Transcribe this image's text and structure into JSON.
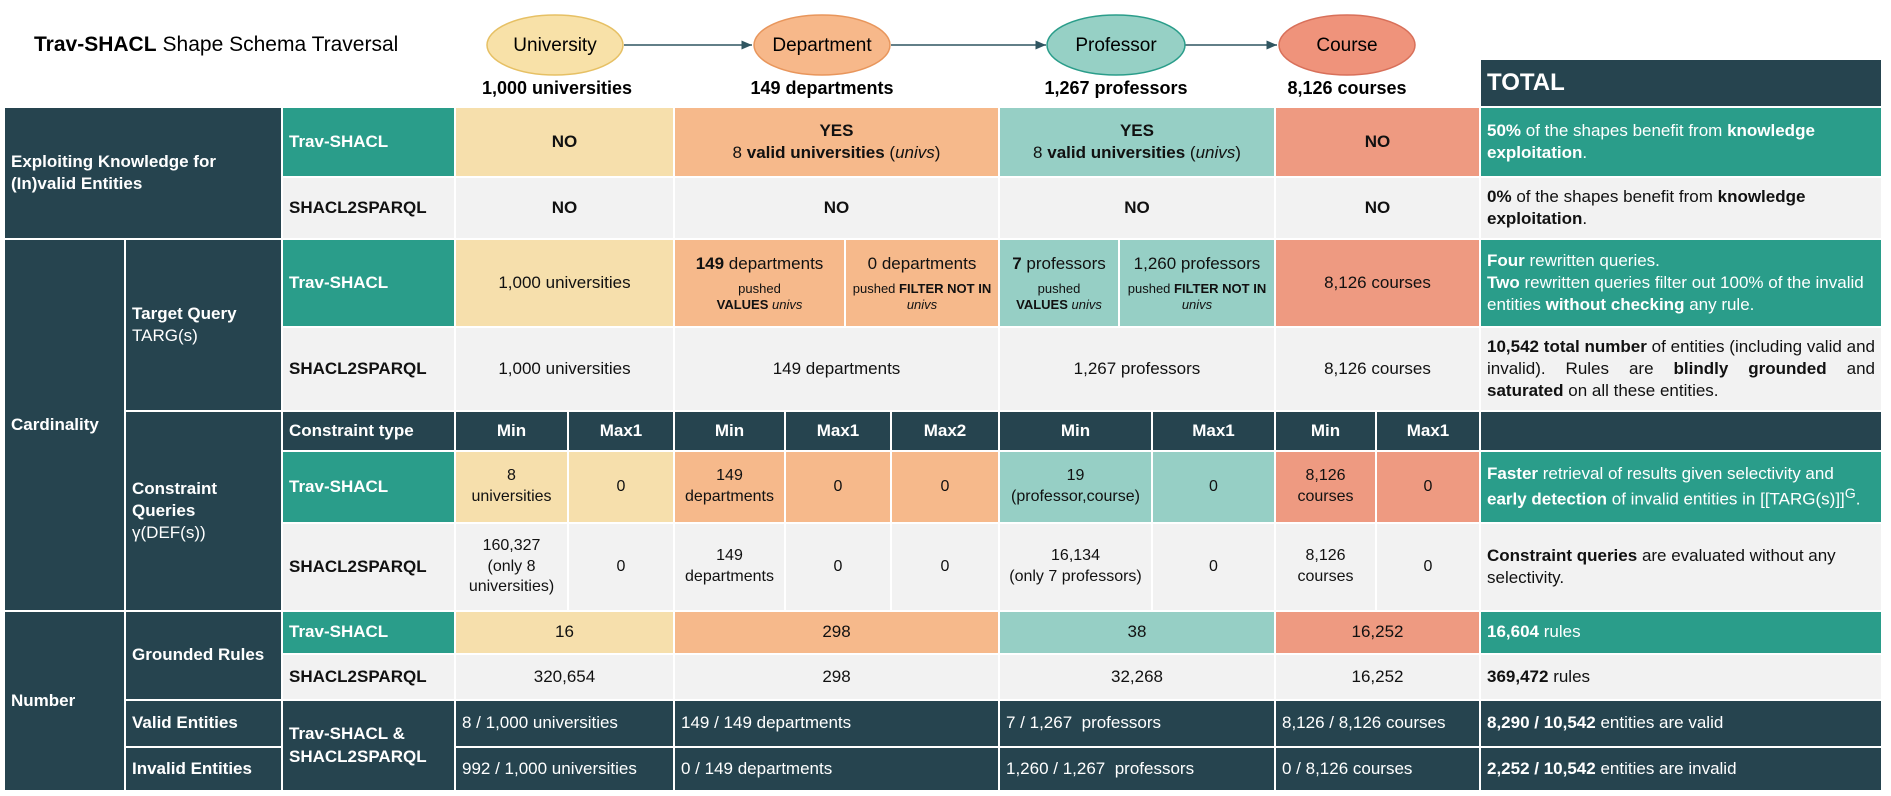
{
  "header": {
    "title": [
      "Trav-SHACL",
      "Shape Schema Traversal"
    ]
  },
  "nodes": [
    {
      "label": "University",
      "count": "1,000 universities"
    },
    {
      "label": "Department",
      "count": "149 departments"
    },
    {
      "label": "Professor",
      "count": "1,267 professors"
    },
    {
      "label": "Course",
      "count": "8,126 courses"
    }
  ],
  "table": {
    "total_header": "TOTAL",
    "exploiting": {
      "label": "Exploiting Knowledge for (In)valid Entities",
      "rows": [
        {
          "method": "Trav-SHACL",
          "cells": [
            "NO",
            [
              "YES",
              "8",
              "valid universities",
              "(",
              "univs",
              ")"
            ],
            [
              "YES",
              "8",
              "valid universities",
              "(",
              "univs",
              ")"
            ],
            "NO"
          ],
          "total": [
            "50%",
            "of the shapes benefit from",
            "knowledge exploitation",
            "."
          ]
        },
        {
          "method": "SHACL2SPARQL",
          "cells": [
            "NO",
            "NO",
            "NO",
            "NO"
          ],
          "total": [
            "0%",
            "of the shapes benefit from",
            "knowledge exploitation",
            "."
          ]
        }
      ]
    },
    "cardinality": {
      "label": "Cardinality",
      "target": {
        "label": [
          "Target Query",
          "TARG(s)"
        ],
        "rows": [
          {
            "method": "Trav-SHACL",
            "cells": [
              "1,000 universities",
              {
                "count": [
                  "149",
                  "departments"
                ],
                "note": [
                  "pushed",
                  "VALUES",
                  "univs"
                ]
              },
              {
                "count": "0 departments",
                "note": [
                  "pushed",
                  "FILTER NOT IN",
                  "univs"
                ]
              },
              {
                "count": [
                  "7",
                  "professors"
                ],
                "note": [
                  "pushed",
                  "VALUES",
                  "univs"
                ]
              },
              {
                "count": "1,260 professors",
                "note": [
                  "pushed",
                  "FILTER NOT IN",
                  "univs"
                ]
              },
              "8,126 courses"
            ],
            "total": [
              "Four",
              "rewritten queries.",
              "Two",
              "rewritten queries filter out 100% of the invalid entities",
              "without checking",
              "any rule."
            ]
          },
          {
            "method": "SHACL2SPARQL",
            "cells": [
              "1,000 universities",
              "149 departments",
              "1,267 professors",
              "8,126 courses"
            ],
            "total": [
              "10,542 total number",
              "of entities (including valid and invalid). Rules are",
              "blindly grounded",
              "and",
              "saturated",
              "on all these entities."
            ]
          }
        ]
      },
      "constraint": {
        "label": [
          "Constraint Queries",
          "γ(DEF(s))"
        ],
        "header": {
          "method": "Constraint type",
          "cells": [
            "Min",
            "Max1",
            "Min",
            "Max1",
            "Max2",
            "Min",
            "Max1",
            "Min",
            "Max1"
          ]
        },
        "rows": [
          {
            "method": "Trav-SHACL",
            "cells": [
              [
                "8",
                "universities"
              ],
              "0",
              [
                "149",
                "departments"
              ],
              "0",
              "0",
              [
                "19",
                "(professor,course)"
              ],
              "0",
              [
                "8,126",
                "courses"
              ],
              "0"
            ],
            "total": [
              "Faster",
              "retrieval of results given selectivity and",
              "early detection",
              "of invalid entities in [[TARG(s)]]",
              "G",
              "."
            ]
          },
          {
            "method": "SHACL2SPARQL",
            "cells": [
              [
                "160,327",
                "(only 8 universities)"
              ],
              "0",
              [
                "149",
                "departments"
              ],
              "0",
              "0",
              [
                "16,134",
                "(only 7 professors)"
              ],
              "0",
              [
                "8,126",
                "courses"
              ],
              "0"
            ],
            "total": [
              "Constraint queries",
              "are evaluated without any selectivity."
            ]
          }
        ]
      }
    },
    "number": {
      "label": "Number",
      "grounded": {
        "label": "Grounded Rules",
        "rows": [
          {
            "method": "Trav-SHACL",
            "cells": [
              "16",
              "298",
              "38",
              "16,252"
            ],
            "total": [
              "16,604",
              "rules"
            ]
          },
          {
            "method": "SHACL2SPARQL",
            "cells": [
              "320,654",
              "298",
              "32,268",
              "16,252"
            ],
            "total": [
              "369,472",
              "rules"
            ]
          }
        ]
      },
      "entities": {
        "method": "Trav-SHACL & SHACL2SPARQL",
        "rows": [
          {
            "label": "Valid Entities",
            "cells": [
              "8 / 1,000 universities",
              "149 / 149 departments",
              "7 / 1,267  professors",
              "8,126 / 8,126 courses"
            ],
            "total": [
              "8,290 / 10,542",
              "entities are valid"
            ]
          },
          {
            "label": "Invalid Entities",
            "cells": [
              "992 / 1,000 universities",
              "0 / 149 departments",
              "1,260 / 1,267  professors",
              "0 / 8,126 courses"
            ],
            "total": [
              "2,252 / 10,542",
              "entities are invalid"
            ]
          }
        ]
      }
    }
  }
}
